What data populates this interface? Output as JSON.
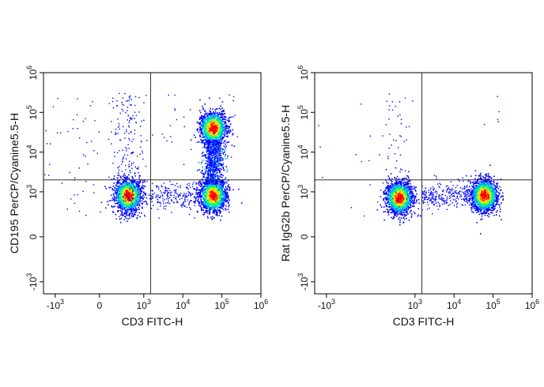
{
  "chart_data": [
    {
      "type": "scatter",
      "xlabel": "CD3 FITC-H",
      "ylabel": "CD195 PerCP/Cyanine5.5-H",
      "x_scale": "biexponential",
      "y_scale": "biexponential",
      "xlim": [
        -2000,
        1000000
      ],
      "ylim": [
        -2000,
        1000000
      ],
      "x_ticks": [
        {
          "value": -1000,
          "base": "-10",
          "exp": "3"
        },
        {
          "value": 0,
          "base": "0",
          "exp": ""
        },
        {
          "value": 1000,
          "base": "10",
          "exp": "3"
        },
        {
          "value": 10000,
          "base": "10",
          "exp": "4"
        },
        {
          "value": 100000,
          "base": "10",
          "exp": "5"
        },
        {
          "value": 1000000,
          "base": "10",
          "exp": "6"
        }
      ],
      "y_ticks": [
        {
          "value": -1000,
          "base": "-10",
          "exp": "3"
        },
        {
          "value": 0,
          "base": "0",
          "exp": ""
        },
        {
          "value": 1000,
          "base": "10",
          "exp": "3"
        },
        {
          "value": 10000,
          "base": "10",
          "exp": "4"
        },
        {
          "value": 100000,
          "base": "10",
          "exp": "5"
        },
        {
          "value": 1000000,
          "base": "10",
          "exp": "6"
        }
      ],
      "gate": {
        "x": 1500,
        "y": 2000
      },
      "populations": [
        {
          "x": 400,
          "y": 800,
          "count": 1500
        },
        {
          "x": 60000,
          "y": 800,
          "count": 1500
        },
        {
          "x": 60000,
          "y": 40000,
          "count": 1300
        }
      ]
    },
    {
      "type": "scatter",
      "xlabel": "CD3 FITC-H",
      "ylabel": "Rat IgG2b PerCP/Cyanine5.5-H",
      "x_scale": "biexponential",
      "y_scale": "biexponential",
      "xlim": [
        -2000,
        1000000
      ],
      "ylim": [
        -2000,
        1000000
      ],
      "x_ticks": [
        {
          "value": -1000,
          "base": "-10",
          "exp": "3"
        },
        {
          "value": 1000,
          "base": "10",
          "exp": "3"
        },
        {
          "value": 10000,
          "base": "10",
          "exp": "4"
        },
        {
          "value": 100000,
          "base": "10",
          "exp": "5"
        },
        {
          "value": 1000000,
          "base": "10",
          "exp": "6"
        }
      ],
      "y_ticks": [
        {
          "value": -1000,
          "base": "-10",
          "exp": "3"
        },
        {
          "value": 0,
          "base": "0",
          "exp": ""
        },
        {
          "value": 1000,
          "base": "10",
          "exp": "3"
        },
        {
          "value": 10000,
          "base": "10",
          "exp": "4"
        },
        {
          "value": 100000,
          "base": "10",
          "exp": "5"
        },
        {
          "value": 1000000,
          "base": "10",
          "exp": "6"
        }
      ],
      "gate": {
        "x": 1500,
        "y": 2000
      },
      "populations": [
        {
          "x": 400,
          "y": 700,
          "count": 1500
        },
        {
          "x": 60000,
          "y": 800,
          "count": 1600
        }
      ]
    }
  ],
  "colors": {
    "density": [
      "#0000ff",
      "#00a0ff",
      "#00ff80",
      "#ffe000",
      "#ff0000"
    ],
    "axis": "#000000",
    "gate": "#333333"
  }
}
